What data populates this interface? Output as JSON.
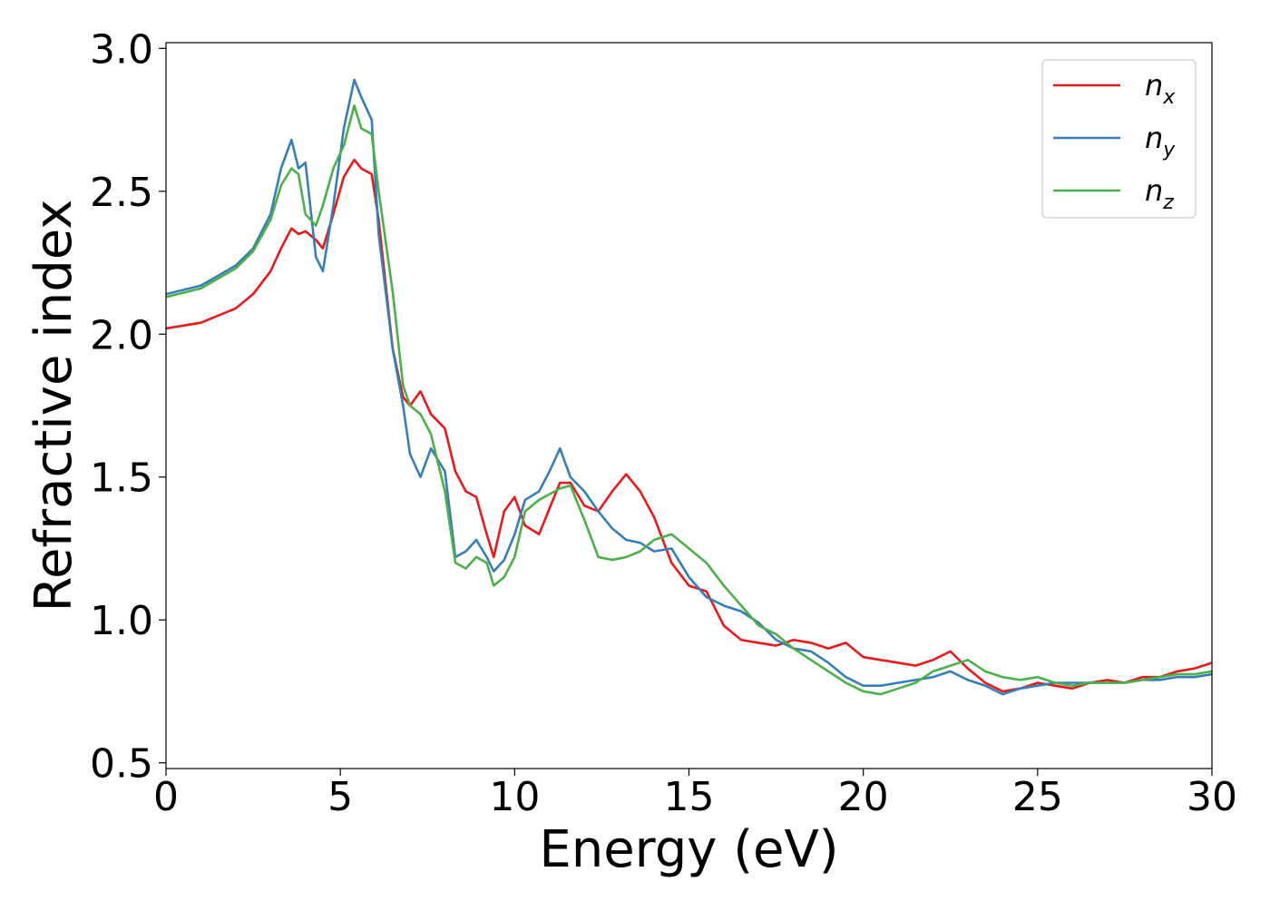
{
  "chart_data": {
    "type": "line",
    "title": "",
    "xlabel": "Energy (eV)",
    "ylabel": "Refractive index",
    "xlim": [
      0,
      30
    ],
    "ylim": [
      0.48,
      3.02
    ],
    "xticks": [
      0,
      5,
      10,
      15,
      20,
      25,
      30
    ],
    "yticks": [
      0.5,
      1.0,
      1.5,
      2.0,
      2.5,
      3.0
    ],
    "xtick_labels": [
      "0",
      "5",
      "10",
      "15",
      "20",
      "25",
      "30"
    ],
    "ytick_labels": [
      "0.5",
      "1.0",
      "1.5",
      "2.0",
      "2.5",
      "3.0"
    ],
    "grid": false,
    "legend_position": "top-right",
    "series": [
      {
        "name": "n_x",
        "legend_base": "n",
        "legend_sub": "x",
        "color": "#e41a1c",
        "x": [
          0,
          1,
          2,
          2.5,
          3,
          3.3,
          3.6,
          3.8,
          4,
          4.3,
          4.5,
          4.8,
          5.1,
          5.4,
          5.6,
          5.9,
          6.1,
          6.5,
          6.8,
          7,
          7.3,
          7.6,
          8,
          8.3,
          8.6,
          8.9,
          9.2,
          9.4,
          9.7,
          10,
          10.3,
          10.7,
          11,
          11.3,
          11.6,
          12,
          12.4,
          12.8,
          13.2,
          13.6,
          14,
          14.5,
          15,
          15.5,
          16,
          16.5,
          17,
          17.5,
          18,
          18.5,
          19,
          19.5,
          20,
          20.5,
          21,
          21.5,
          22,
          22.5,
          23,
          23.5,
          24,
          24.5,
          25,
          25.5,
          26,
          26.5,
          27,
          27.5,
          28,
          28.5,
          29,
          29.5,
          30
        ],
        "values": [
          2.02,
          2.04,
          2.09,
          2.14,
          2.22,
          2.3,
          2.37,
          2.35,
          2.36,
          2.33,
          2.3,
          2.42,
          2.55,
          2.61,
          2.58,
          2.56,
          2.4,
          1.95,
          1.78,
          1.75,
          1.8,
          1.72,
          1.67,
          1.52,
          1.45,
          1.43,
          1.3,
          1.22,
          1.38,
          1.43,
          1.33,
          1.3,
          1.39,
          1.48,
          1.48,
          1.4,
          1.38,
          1.45,
          1.51,
          1.45,
          1.36,
          1.2,
          1.12,
          1.1,
          0.98,
          0.93,
          0.92,
          0.91,
          0.93,
          0.92,
          0.9,
          0.92,
          0.87,
          0.86,
          0.85,
          0.84,
          0.86,
          0.89,
          0.83,
          0.78,
          0.75,
          0.76,
          0.78,
          0.77,
          0.76,
          0.78,
          0.79,
          0.78,
          0.8,
          0.8,
          0.82,
          0.83,
          0.85
        ]
      },
      {
        "name": "n_y",
        "legend_base": "n",
        "legend_sub": "y",
        "color": "#377eb8",
        "x": [
          0,
          1,
          2,
          2.5,
          3,
          3.3,
          3.6,
          3.8,
          4,
          4.3,
          4.5,
          4.8,
          5.1,
          5.4,
          5.6,
          5.9,
          6.1,
          6.5,
          6.8,
          7,
          7.3,
          7.6,
          8,
          8.3,
          8.6,
          8.9,
          9.2,
          9.4,
          9.7,
          10,
          10.3,
          10.7,
          11,
          11.3,
          11.6,
          12,
          12.4,
          12.8,
          13.2,
          13.6,
          14,
          14.5,
          15,
          15.5,
          16,
          16.5,
          17,
          17.5,
          18,
          18.5,
          19,
          19.5,
          20,
          20.5,
          21,
          21.5,
          22,
          22.5,
          23,
          23.5,
          24,
          24.5,
          25,
          25.5,
          26,
          26.5,
          27,
          27.5,
          28,
          28.5,
          29,
          29.5,
          30
        ],
        "values": [
          2.14,
          2.17,
          2.24,
          2.3,
          2.42,
          2.58,
          2.68,
          2.58,
          2.6,
          2.27,
          2.22,
          2.45,
          2.72,
          2.89,
          2.83,
          2.75,
          2.35,
          1.95,
          1.75,
          1.58,
          1.5,
          1.6,
          1.52,
          1.22,
          1.24,
          1.28,
          1.22,
          1.17,
          1.21,
          1.3,
          1.42,
          1.45,
          1.52,
          1.6,
          1.5,
          1.45,
          1.38,
          1.32,
          1.28,
          1.27,
          1.24,
          1.25,
          1.15,
          1.08,
          1.05,
          1.03,
          0.99,
          0.93,
          0.9,
          0.89,
          0.85,
          0.8,
          0.77,
          0.77,
          0.78,
          0.79,
          0.8,
          0.82,
          0.79,
          0.77,
          0.74,
          0.76,
          0.77,
          0.78,
          0.78,
          0.78,
          0.78,
          0.78,
          0.79,
          0.79,
          0.8,
          0.8,
          0.81
        ]
      },
      {
        "name": "n_z",
        "legend_base": "n",
        "legend_sub": "z",
        "color": "#4daf4a",
        "x": [
          0,
          1,
          2,
          2.5,
          3,
          3.3,
          3.6,
          3.8,
          4,
          4.3,
          4.5,
          4.8,
          5.1,
          5.4,
          5.6,
          5.9,
          6.1,
          6.5,
          6.8,
          7,
          7.3,
          7.6,
          8,
          8.3,
          8.6,
          8.9,
          9.2,
          9.4,
          9.7,
          10,
          10.3,
          10.7,
          11,
          11.3,
          11.6,
          12,
          12.4,
          12.8,
          13.2,
          13.6,
          14,
          14.5,
          15,
          15.5,
          16,
          16.5,
          17,
          17.5,
          18,
          18.5,
          19,
          19.5,
          20,
          20.5,
          21,
          21.5,
          22,
          22.5,
          23,
          23.5,
          24,
          24.5,
          25,
          25.5,
          26,
          26.5,
          27,
          27.5,
          28,
          28.5,
          29,
          29.5,
          30
        ],
        "values": [
          2.13,
          2.16,
          2.23,
          2.29,
          2.4,
          2.52,
          2.58,
          2.56,
          2.42,
          2.38,
          2.45,
          2.58,
          2.66,
          2.8,
          2.72,
          2.7,
          2.5,
          2.15,
          1.82,
          1.75,
          1.72,
          1.65,
          1.45,
          1.2,
          1.18,
          1.22,
          1.2,
          1.12,
          1.15,
          1.22,
          1.38,
          1.42,
          1.44,
          1.46,
          1.47,
          1.35,
          1.22,
          1.21,
          1.22,
          1.24,
          1.28,
          1.3,
          1.25,
          1.2,
          1.12,
          1.05,
          0.98,
          0.95,
          0.9,
          0.86,
          0.82,
          0.78,
          0.75,
          0.74,
          0.76,
          0.78,
          0.82,
          0.84,
          0.86,
          0.82,
          0.8,
          0.79,
          0.8,
          0.78,
          0.77,
          0.78,
          0.78,
          0.78,
          0.79,
          0.8,
          0.81,
          0.81,
          0.82
        ]
      }
    ]
  }
}
